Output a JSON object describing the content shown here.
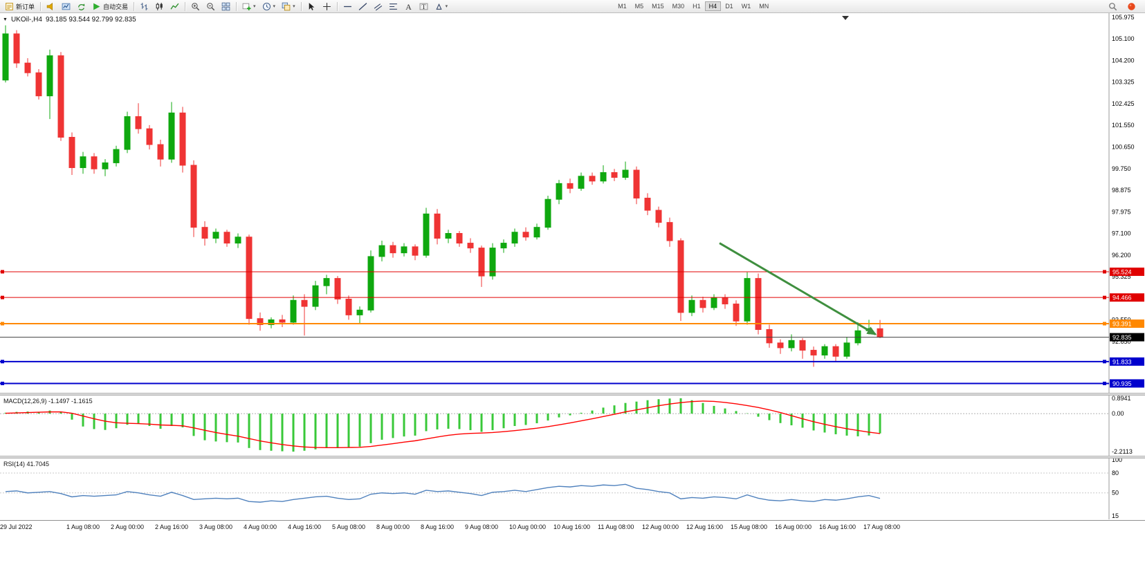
{
  "toolbar": {
    "new_order": "新订单",
    "autotrading": "自动交易",
    "timeframes": [
      "M1",
      "M5",
      "M15",
      "M30",
      "H1",
      "H4",
      "D1",
      "W1",
      "MN"
    ],
    "active_timeframe": "H4"
  },
  "chart": {
    "symbol": "UKOil-,H4",
    "ohlc": "93.185 93.544 92.799 92.835"
  },
  "chart_data": {
    "type": "candlestick",
    "symbol": "UKOil-",
    "timeframe": "H4",
    "colors": {
      "up": "#0fa80f",
      "down": "#ef3434",
      "bg": "#ffffff"
    },
    "price_axis": {
      "min": 90.55,
      "max": 106.15,
      "ticks": [
        105.975,
        105.1,
        104.2,
        103.325,
        102.425,
        101.55,
        100.65,
        99.75,
        98.875,
        97.975,
        97.1,
        96.2,
        95.325,
        94.425,
        93.55,
        92.65,
        91.775,
        90.875
      ]
    },
    "candles": [
      [
        103.4,
        105.65,
        103.3,
        105.3
      ],
      [
        105.3,
        105.45,
        103.9,
        104.1
      ],
      [
        104.1,
        104.3,
        103.55,
        103.7
      ],
      [
        103.7,
        103.85,
        102.6,
        102.75
      ],
      [
        102.75,
        104.65,
        101.8,
        104.4
      ],
      [
        104.4,
        104.55,
        100.9,
        101.05
      ],
      [
        101.05,
        101.25,
        99.5,
        99.8
      ],
      [
        99.8,
        100.45,
        99.55,
        100.25
      ],
      [
        100.25,
        100.4,
        99.55,
        99.75
      ],
      [
        99.75,
        100.15,
        99.45,
        100.0
      ],
      [
        100.0,
        100.7,
        99.85,
        100.55
      ],
      [
        100.55,
        102.1,
        100.4,
        101.9
      ],
      [
        101.9,
        102.45,
        101.2,
        101.4
      ],
      [
        101.4,
        101.55,
        100.55,
        100.75
      ],
      [
        100.75,
        100.95,
        99.85,
        100.15
      ],
      [
        100.15,
        102.5,
        100.0,
        102.05
      ],
      [
        102.05,
        102.3,
        99.6,
        99.9
      ],
      [
        99.9,
        100.1,
        96.95,
        97.35
      ],
      [
        97.35,
        97.6,
        96.6,
        96.9
      ],
      [
        96.9,
        97.3,
        96.7,
        97.15
      ],
      [
        97.15,
        97.25,
        96.55,
        96.7
      ],
      [
        96.7,
        97.1,
        96.5,
        96.95
      ],
      [
        96.95,
        97.05,
        93.35,
        93.6
      ],
      [
        93.6,
        93.85,
        93.1,
        93.35
      ],
      [
        93.35,
        93.65,
        93.2,
        93.55
      ],
      [
        93.55,
        93.75,
        93.25,
        93.45
      ],
      [
        93.45,
        94.55,
        93.35,
        94.35
      ],
      [
        94.35,
        94.6,
        92.9,
        94.1
      ],
      [
        94.1,
        95.15,
        93.95,
        94.95
      ],
      [
        94.95,
        95.4,
        94.6,
        95.25
      ],
      [
        95.25,
        95.35,
        94.2,
        94.4
      ],
      [
        94.4,
        94.55,
        93.55,
        93.75
      ],
      [
        93.75,
        94.1,
        93.4,
        93.95
      ],
      [
        93.95,
        96.4,
        93.85,
        96.15
      ],
      [
        96.15,
        96.8,
        95.95,
        96.6
      ],
      [
        96.6,
        96.75,
        96.1,
        96.3
      ],
      [
        96.3,
        96.7,
        96.15,
        96.55
      ],
      [
        96.55,
        96.65,
        96.0,
        96.2
      ],
      [
        96.2,
        98.15,
        96.1,
        97.9
      ],
      [
        97.9,
        98.1,
        96.65,
        96.9
      ],
      [
        96.9,
        97.25,
        96.7,
        97.1
      ],
      [
        97.1,
        97.2,
        96.55,
        96.7
      ],
      [
        96.7,
        96.9,
        96.3,
        96.5
      ],
      [
        96.5,
        96.6,
        94.9,
        95.35
      ],
      [
        95.35,
        96.7,
        95.2,
        96.5
      ],
      [
        96.5,
        96.85,
        96.3,
        96.7
      ],
      [
        96.7,
        97.3,
        96.55,
        97.15
      ],
      [
        97.15,
        97.35,
        96.8,
        96.95
      ],
      [
        96.95,
        97.5,
        96.85,
        97.35
      ],
      [
        97.35,
        98.65,
        97.25,
        98.5
      ],
      [
        98.5,
        99.3,
        98.3,
        99.15
      ],
      [
        99.15,
        99.35,
        98.75,
        98.95
      ],
      [
        98.95,
        99.6,
        98.85,
        99.45
      ],
      [
        99.45,
        99.6,
        99.1,
        99.25
      ],
      [
        99.25,
        99.9,
        99.15,
        99.6
      ],
      [
        99.6,
        99.75,
        99.25,
        99.4
      ],
      [
        99.4,
        100.05,
        99.3,
        99.7
      ],
      [
        99.7,
        99.85,
        98.3,
        98.55
      ],
      [
        98.55,
        98.75,
        97.85,
        98.05
      ],
      [
        98.05,
        98.2,
        97.35,
        97.55
      ],
      [
        97.55,
        97.75,
        96.55,
        96.8
      ],
      [
        96.8,
        96.9,
        93.5,
        93.85
      ],
      [
        93.85,
        94.55,
        93.7,
        94.35
      ],
      [
        94.35,
        94.5,
        93.85,
        94.05
      ],
      [
        94.05,
        94.6,
        93.95,
        94.45
      ],
      [
        94.45,
        94.6,
        94.0,
        94.2
      ],
      [
        94.2,
        94.35,
        93.3,
        93.5
      ],
      [
        93.5,
        95.5,
        93.35,
        95.25
      ],
      [
        95.25,
        95.45,
        92.95,
        93.15
      ],
      [
        93.15,
        93.35,
        92.4,
        92.6
      ],
      [
        92.6,
        92.75,
        92.15,
        92.4
      ],
      [
        92.4,
        92.95,
        92.25,
        92.7
      ],
      [
        92.7,
        92.8,
        91.95,
        92.3
      ],
      [
        92.3,
        92.45,
        91.62,
        92.1
      ],
      [
        92.1,
        92.55,
        91.95,
        92.45
      ],
      [
        92.45,
        92.55,
        91.85,
        92.05
      ],
      [
        92.05,
        92.85,
        91.95,
        92.6
      ],
      [
        92.6,
        93.45,
        92.5,
        93.1
      ],
      [
        93.1,
        93.55,
        92.95,
        93.19
      ],
      [
        93.185,
        93.544,
        92.799,
        92.835
      ]
    ],
    "time_labels": [
      {
        "i": 0,
        "t": "29 Jul 2022"
      },
      {
        "i": 6,
        "t": "1 Aug 08:00"
      },
      {
        "i": 10,
        "t": "2 Aug 00:00"
      },
      {
        "i": 14,
        "t": "2 Aug 16:00"
      },
      {
        "i": 18,
        "t": "3 Aug 08:00"
      },
      {
        "i": 22,
        "t": "4 Aug 00:00"
      },
      {
        "i": 26,
        "t": "4 Aug 16:00"
      },
      {
        "i": 30,
        "t": "5 Aug 08:00"
      },
      {
        "i": 34,
        "t": "8 Aug 00:00"
      },
      {
        "i": 38,
        "t": "8 Aug 16:00"
      },
      {
        "i": 42,
        "t": "9 Aug 08:00"
      },
      {
        "i": 46,
        "t": "10 Aug 00:00"
      },
      {
        "i": 50,
        "t": "10 Aug 16:00"
      },
      {
        "i": 54,
        "t": "11 Aug 08:00"
      },
      {
        "i": 58,
        "t": "12 Aug 00:00"
      },
      {
        "i": 62,
        "t": "12 Aug 16:00"
      },
      {
        "i": 66,
        "t": "15 Aug 08:00"
      },
      {
        "i": 70,
        "t": "16 Aug 00:00"
      },
      {
        "i": 74,
        "t": "16 Aug 16:00"
      },
      {
        "i": 78,
        "t": "17 Aug 08:00"
      }
    ],
    "hlines": [
      {
        "price": 95.524,
        "color": "#e00000",
        "width": 1,
        "label": "95.524",
        "label_bg": "#e00000"
      },
      {
        "price": 94.466,
        "color": "#e00000",
        "width": 1,
        "label": "94.466",
        "label_bg": "#e00000"
      },
      {
        "price": 93.391,
        "color": "#ff8800",
        "width": 2,
        "label": "93.391",
        "label_bg": "#ff8800"
      },
      {
        "price": 91.833,
        "color": "#0000cd",
        "width": 2,
        "label": "91.833",
        "label_bg": "#0000cd"
      },
      {
        "price": 90.935,
        "color": "#0000cd",
        "width": 2,
        "label": "90.935",
        "label_bg": "#0000cd"
      }
    ],
    "bid_line": {
      "price": 92.835,
      "color": "#404040",
      "label": "92.835",
      "label_bg": "#000000"
    },
    "trend_arrow": {
      "from_bar": 64.5,
      "from_price": 96.7,
      "to_bar": 78.6,
      "to_price": 92.95,
      "color": "#3f8f3f"
    },
    "macd": {
      "title": "MACD(12,26,9) -1.1497 -1.1615",
      "max": 1.05,
      "min": -2.45,
      "ticks": [
        {
          "v": 0.8941,
          "label": "0.8941"
        },
        {
          "v": 0,
          "label": "0.00"
        },
        {
          "v": -2.2113,
          "label": "-2.2113"
        }
      ],
      "hist_color": "#39c839",
      "signal_color": "#ff0000",
      "histogram": [
        0.05,
        0.1,
        0.12,
        0.1,
        0.18,
        0.1,
        -0.35,
        -0.75,
        -0.9,
        -0.95,
        -0.85,
        -0.65,
        -0.6,
        -0.72,
        -0.88,
        -0.72,
        -0.8,
        -1.3,
        -1.55,
        -1.62,
        -1.66,
        -1.68,
        -2.0,
        -2.12,
        -2.16,
        -2.19,
        -2.2113,
        -2.16,
        -2.08,
        -2.0,
        -1.97,
        -1.96,
        -1.92,
        -1.72,
        -1.52,
        -1.42,
        -1.33,
        -1.28,
        -1.02,
        -0.92,
        -0.88,
        -0.9,
        -0.96,
        -1.06,
        -0.96,
        -0.85,
        -0.72,
        -0.66,
        -0.56,
        -0.4,
        -0.22,
        -0.1,
        0.05,
        0.18,
        0.35,
        0.48,
        0.62,
        0.7,
        0.78,
        0.84,
        0.88,
        0.8941,
        0.78,
        0.62,
        0.45,
        0.3,
        0.15,
        0.02,
        -0.18,
        -0.38,
        -0.55,
        -0.68,
        -0.82,
        -0.98,
        -1.1,
        -1.2,
        -1.28,
        -1.32,
        -1.27,
        -1.1497
      ],
      "signal": [
        0.02,
        0.04,
        0.06,
        0.08,
        0.1,
        0.1,
        0.02,
        -0.14,
        -0.3,
        -0.44,
        -0.53,
        -0.56,
        -0.58,
        -0.61,
        -0.66,
        -0.68,
        -0.71,
        -0.83,
        -0.97,
        -1.1,
        -1.21,
        -1.31,
        -1.45,
        -1.59,
        -1.7,
        -1.8,
        -1.88,
        -1.94,
        -1.97,
        -1.98,
        -1.98,
        -1.97,
        -1.96,
        -1.91,
        -1.83,
        -1.75,
        -1.66,
        -1.58,
        -1.47,
        -1.36,
        -1.26,
        -1.19,
        -1.15,
        -1.13,
        -1.1,
        -1.05,
        -0.99,
        -0.92,
        -0.85,
        -0.76,
        -0.65,
        -0.54,
        -0.42,
        -0.3,
        -0.17,
        -0.04,
        0.1,
        0.22,
        0.34,
        0.46,
        0.56,
        0.64,
        0.7,
        0.73,
        0.71,
        0.65,
        0.57,
        0.47,
        0.36,
        0.22,
        0.06,
        -0.12,
        -0.3,
        -0.47,
        -0.62,
        -0.76,
        -0.88,
        -0.98,
        -1.08,
        -1.1615
      ]
    },
    "rsi": {
      "title": "RSI(14) 41.7045",
      "max": 102,
      "min": 10,
      "ticks": [
        {
          "v": 100,
          "label": "100"
        },
        {
          "v": 80,
          "label": "80"
        },
        {
          "v": 50,
          "label": "50"
        },
        {
          "v": 15,
          "label": "15"
        }
      ],
      "levels": [
        80,
        50
      ],
      "color": "#4f81bd",
      "values": [
        52,
        53,
        50,
        51,
        52,
        49,
        44,
        46,
        45,
        46,
        47,
        52,
        50,
        47,
        45,
        51,
        46,
        40,
        41,
        42,
        41,
        42,
        37,
        36,
        38,
        37,
        40,
        42,
        44,
        45,
        42,
        40,
        41,
        48,
        50,
        49,
        50,
        48,
        54,
        52,
        53,
        51,
        49,
        46,
        51,
        52,
        54,
        52,
        55,
        58,
        60,
        59,
        61,
        60,
        62,
        61,
        63,
        57,
        55,
        52,
        50,
        41,
        43,
        42,
        44,
        43,
        41,
        47,
        42,
        39,
        38,
        40,
        38,
        37,
        40,
        39,
        41,
        44,
        46,
        41.7
      ]
    }
  }
}
